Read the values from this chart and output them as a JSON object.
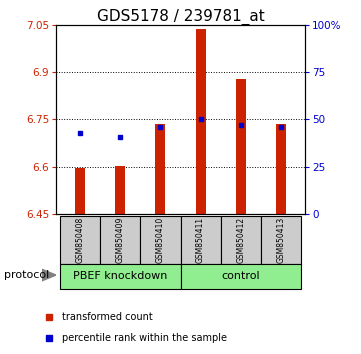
{
  "title": "GDS5178 / 239781_at",
  "samples": [
    "GSM850408",
    "GSM850409",
    "GSM850410",
    "GSM850411",
    "GSM850412",
    "GSM850413"
  ],
  "transformed_counts": [
    6.595,
    6.602,
    6.735,
    7.038,
    6.878,
    6.735
  ],
  "percentile_pct": [
    43,
    41,
    46,
    50,
    47,
    46
  ],
  "bar_bottom": 6.45,
  "ylim_left": [
    6.45,
    7.05
  ],
  "ylim_right": [
    0,
    100
  ],
  "yticks_left": [
    6.45,
    6.6,
    6.75,
    6.9,
    7.05
  ],
  "ytick_labels_left": [
    "6.45",
    "6.6",
    "6.75",
    "6.9",
    "7.05"
  ],
  "yticks_right": [
    0,
    25,
    50,
    75,
    100
  ],
  "ytick_labels_right": [
    "0",
    "25",
    "50",
    "75",
    "100%"
  ],
  "hlines": [
    6.6,
    6.75,
    6.9
  ],
  "bar_color": "#cc2200",
  "blue_marker_color": "#0000cc",
  "sample_box_color": "#cccccc",
  "green_color": "#90ee90",
  "bar_width": 0.25,
  "right_axis_color": "#0000cc",
  "left_axis_color": "#cc2200",
  "title_fontsize": 11,
  "protocol_label": "protocol",
  "group_ranges": [
    [
      0,
      2,
      "PBEF knockdown"
    ],
    [
      3,
      5,
      "control"
    ]
  ],
  "legend_items": [
    {
      "color": "#cc2200",
      "label": "transformed count"
    },
    {
      "color": "#0000cc",
      "label": "percentile rank within the sample"
    }
  ]
}
